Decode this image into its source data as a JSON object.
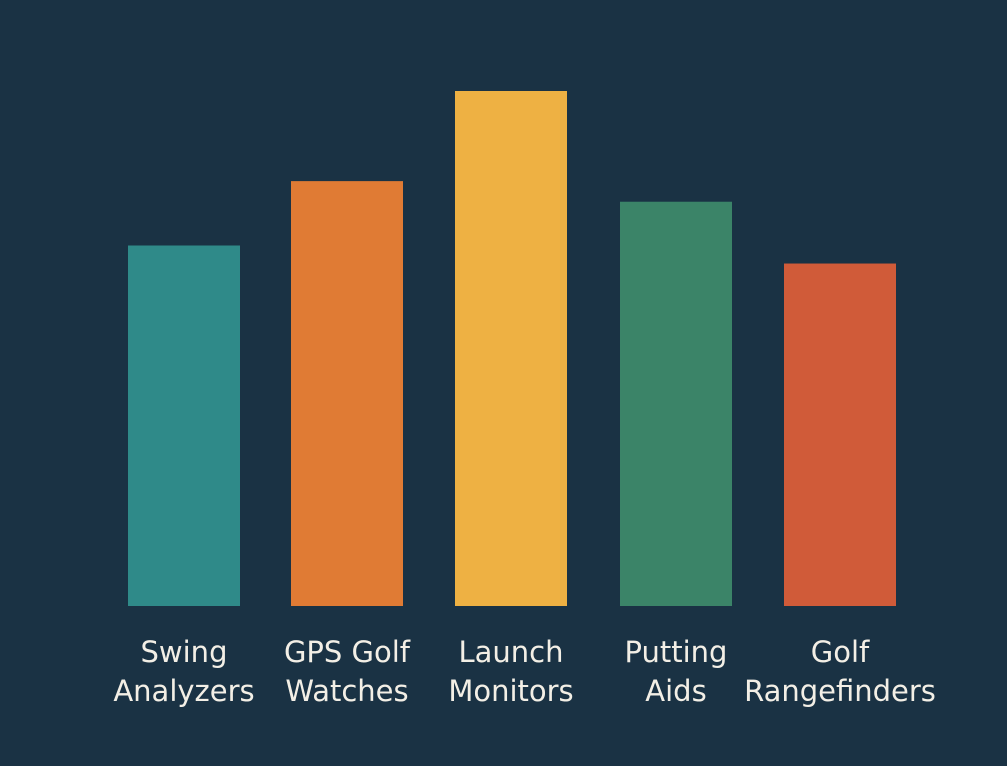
{
  "chart_data": {
    "type": "bar",
    "title": "",
    "xlabel": "",
    "ylabel": "",
    "ylim": [
      0,
      100
    ],
    "grid": false,
    "categories": [
      [
        "Swing",
        "Analyzers"
      ],
      [
        "GPS Golf",
        "Watches"
      ],
      [
        "Launch",
        "Monitors"
      ],
      [
        "Putting",
        "Aids"
      ],
      [
        "Golf",
        "Rangefinders"
      ]
    ],
    "values": [
      70,
      82.5,
      100,
      78.5,
      66.5
    ],
    "colors": [
      "#2f8a89",
      "#e07b34",
      "#eeb143",
      "#3b8468",
      "#d05b39"
    ],
    "background": "#1a3244"
  }
}
